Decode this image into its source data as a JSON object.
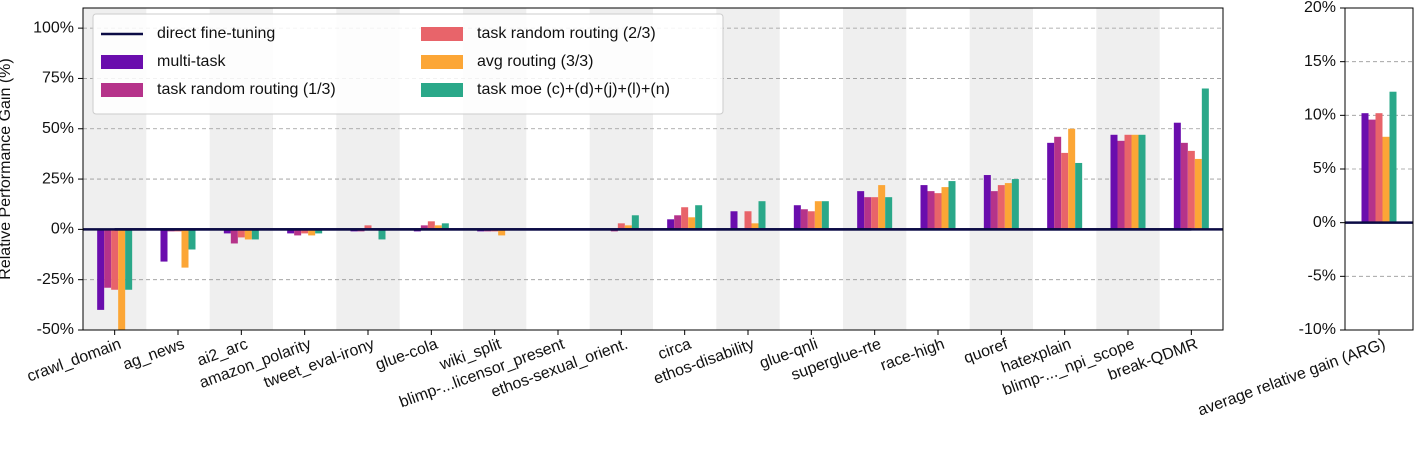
{
  "chart_data": [
    {
      "type": "bar",
      "y_label": "Relative Performance Gain (%)",
      "categories": [
        "crawl_domain",
        "ag_news",
        "ai2_arc",
        "amazon_polarity",
        "tweet_eval-irony",
        "glue-cola",
        "wiki_split",
        "blimp-...licensor_present",
        "ethos-sexual_orient.",
        "circa",
        "ethos-disability",
        "glue-qnli",
        "superglue-rte",
        "race-high",
        "quoref",
        "hatexplain",
        "blimp-..._npi_scope",
        "break-QDMR"
      ],
      "series": [
        {
          "name": "direct fine-tuning",
          "type": "line",
          "color": "#0b0b45",
          "values": [
            0,
            0,
            0,
            0,
            0,
            0,
            0,
            0,
            0,
            0,
            0,
            0,
            0,
            0,
            0,
            0,
            0,
            0
          ]
        },
        {
          "name": "multi-task",
          "color": "#6a0dad",
          "values": [
            -40,
            -16,
            -2,
            -2,
            -1,
            -1,
            -1,
            0,
            0,
            5,
            9,
            12,
            19,
            22,
            27,
            43,
            47,
            53
          ]
        },
        {
          "name": "task random routing (1/3)",
          "color": "#b5338a",
          "values": [
            -29,
            -1,
            -7,
            -3,
            -1,
            2,
            -1,
            0,
            -1,
            7,
            0,
            10,
            16,
            19,
            19,
            46,
            44,
            43
          ]
        },
        {
          "name": "task random routing (2/3)",
          "color": "#e8646a",
          "values": [
            -30,
            -1,
            -4,
            -2,
            2,
            4,
            -1,
            0,
            3,
            11,
            9,
            9,
            16,
            18,
            22,
            38,
            47,
            39
          ]
        },
        {
          "name": "avg routing (3/3)",
          "color": "#fca636",
          "values": [
            -50,
            -19,
            -5,
            -3,
            0,
            2,
            -3,
            0,
            2,
            6,
            3,
            14,
            22,
            21,
            23,
            50,
            47,
            35
          ]
        },
        {
          "name": "task moe (c)+(d)+(j)+(l)+(n)",
          "color": "#2aa889",
          "values": [
            -30,
            -10,
            -5,
            -2,
            -5,
            3,
            0,
            0,
            7,
            12,
            14,
            14,
            16,
            24,
            25,
            33,
            47,
            70
          ]
        }
      ],
      "ylim": [
        -50,
        110
      ],
      "yticks": [
        {
          "value": -50,
          "label": "-50%"
        },
        {
          "value": -25,
          "label": "-25%"
        },
        {
          "value": 0,
          "label": "0%"
        },
        {
          "value": 25,
          "label": "25%"
        },
        {
          "value": 50,
          "label": "50%"
        },
        {
          "value": 75,
          "label": "75%"
        },
        {
          "value": 100,
          "label": "100%"
        }
      ],
      "grid": true,
      "legend": "upper left"
    },
    {
      "type": "bar",
      "categories": [
        "average relative gain (ARG)"
      ],
      "series": [
        {
          "name": "direct fine-tuning",
          "type": "line",
          "color": "#0b0b45",
          "values": [
            0
          ]
        },
        {
          "name": "multi-task",
          "color": "#6a0dad",
          "values": [
            10.2
          ]
        },
        {
          "name": "task random routing (1/3)",
          "color": "#b5338a",
          "values": [
            9.6
          ]
        },
        {
          "name": "task random routing (2/3)",
          "color": "#e8646a",
          "values": [
            10.2
          ]
        },
        {
          "name": "avg routing (3/3)",
          "color": "#fca636",
          "values": [
            8.0
          ]
        },
        {
          "name": "task moe (c)+(d)+(j)+(l)+(n)",
          "color": "#2aa889",
          "values": [
            12.2
          ]
        }
      ],
      "ylim": [
        -10,
        20
      ],
      "yticks": [
        {
          "value": -10,
          "label": "-10%"
        },
        {
          "value": -5,
          "label": "-5%"
        },
        {
          "value": 0,
          "label": "0%"
        },
        {
          "value": 5,
          "label": "5%"
        },
        {
          "value": 10,
          "label": "10%"
        },
        {
          "value": 15,
          "label": "15%"
        },
        {
          "value": 20,
          "label": "20%"
        }
      ],
      "grid": true
    }
  ]
}
